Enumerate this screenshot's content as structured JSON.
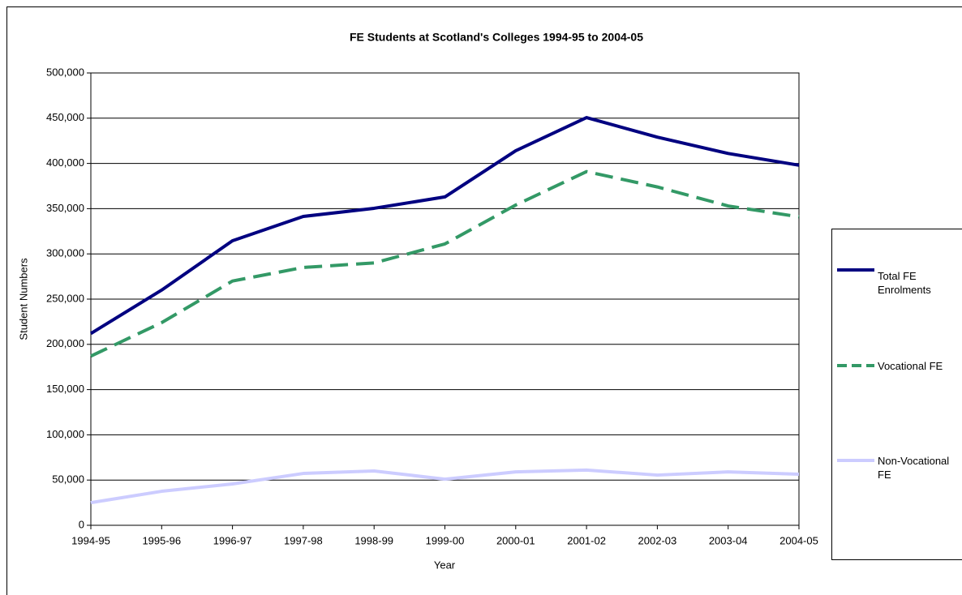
{
  "chart_data": {
    "type": "line",
    "title": "FE Students at Scotland's Colleges 1994-95 to 2004-05",
    "x_label": "Year",
    "y_label": "Student Numbers",
    "categories": [
      "1994-95",
      "1995-96",
      "1996-97",
      "1997-98",
      "1998-99",
      "1999-00",
      "2000-01",
      "2001-02",
      "2002-03",
      "2003-04",
      "2004-05"
    ],
    "series": [
      {
        "name": "Total FE Enrolments",
        "color": "#000080",
        "dash": false,
        "values": [
          212000,
          260000,
          314500,
          341400,
          350400,
          363000,
          414000,
          450700,
          429000,
          411000,
          398000
        ]
      },
      {
        "name": "Vocational FE",
        "color": "#339966",
        "dash": true,
        "values": [
          187000,
          224000,
          270000,
          285000,
          290000,
          311000,
          354000,
          391000,
          374000,
          353000,
          341000
        ]
      },
      {
        "name": "Non-Vocational FE",
        "color": "#ccccff",
        "dash": false,
        "values": [
          25000,
          37600,
          45700,
          57300,
          60000,
          51000,
          59000,
          61000,
          55500,
          59000,
          56500
        ]
      }
    ],
    "ylim": [
      0,
      500000
    ],
    "yticks": [
      0,
      {
        "value": 50000,
        "label": "50,000"
      },
      {
        "value": 100000,
        "label": "100,000"
      },
      {
        "value": 150000,
        "label": "150,000"
      },
      {
        "value": 200000,
        "label": "200,000"
      },
      {
        "value": 250000,
        "label": "250,000"
      },
      {
        "value": 300000,
        "label": "300,000"
      },
      {
        "value": 350000,
        "label": "350,000"
      },
      {
        "value": 400000,
        "label": "400,000"
      },
      {
        "value": 450000,
        "label": "450,000"
      },
      {
        "value": 500000,
        "label": "500,000"
      }
    ],
    "grid": true,
    "legend": "right"
  }
}
